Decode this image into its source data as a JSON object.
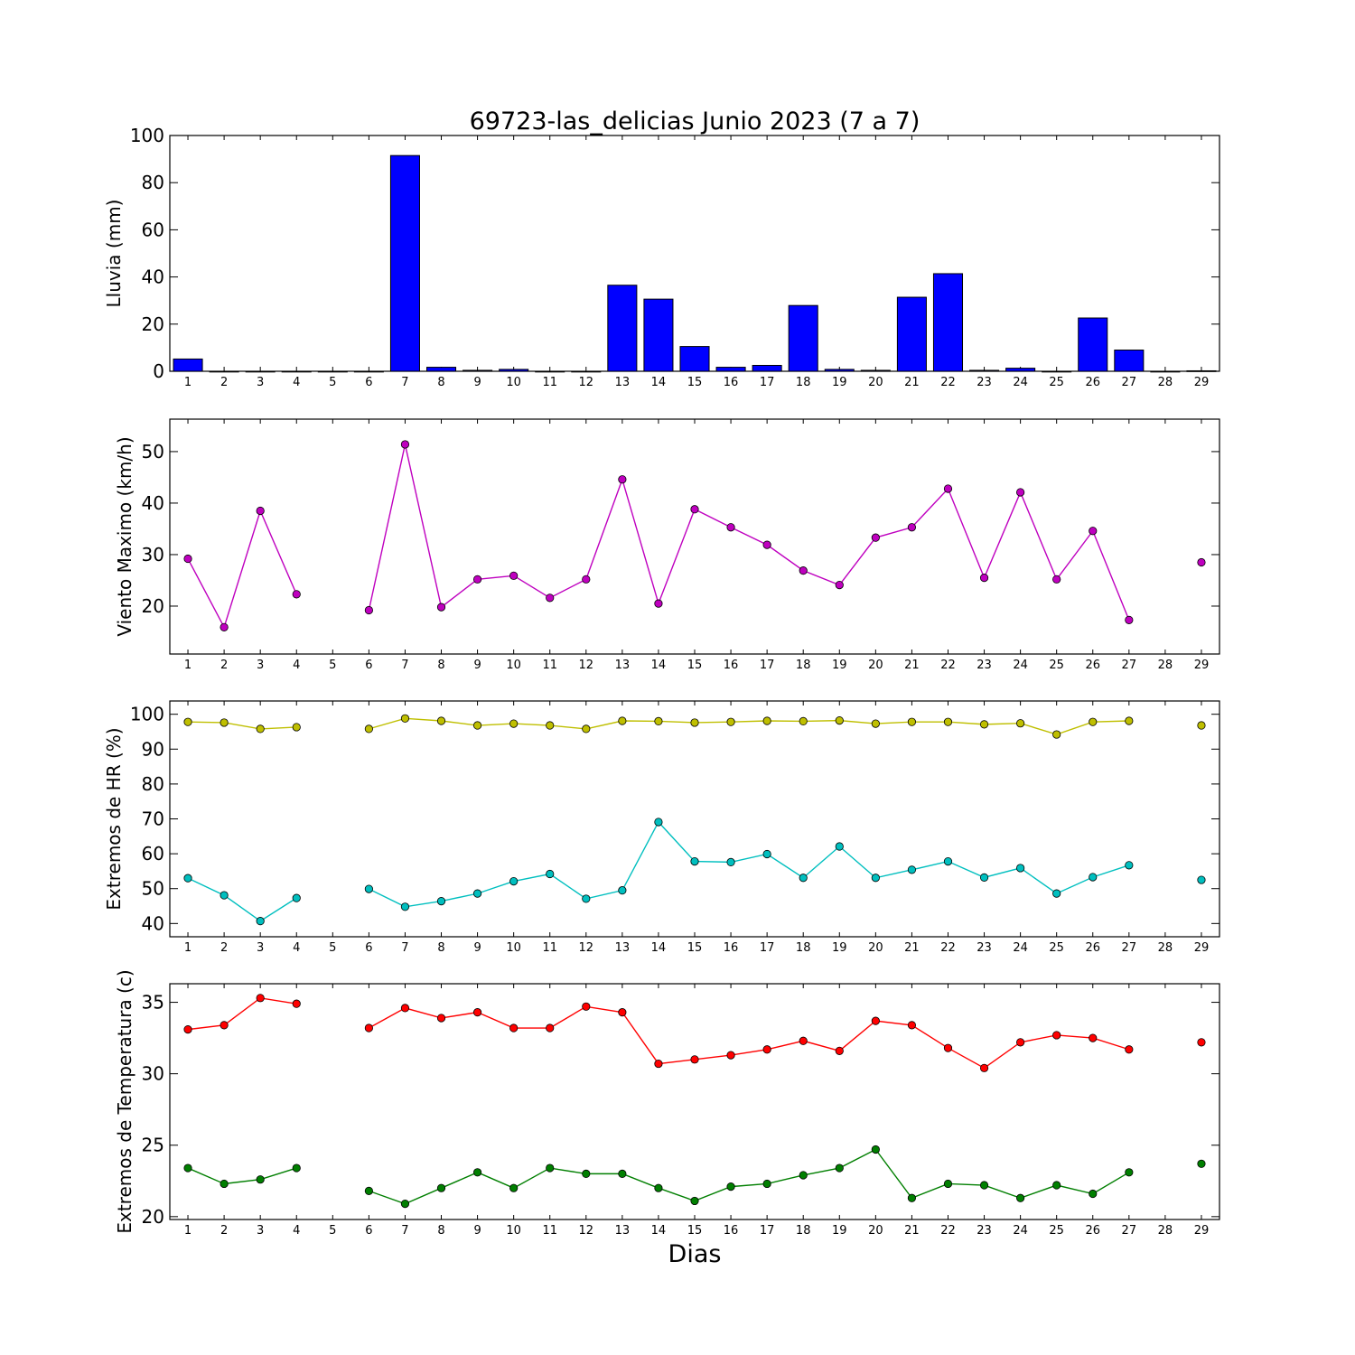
{
  "chart_data": [
    {
      "type": "bar",
      "title": "69723-las_delicias Junio 2023  (7 a 7)",
      "xlabel": "",
      "ylabel": "Lluvia (mm)",
      "ylim": [
        0,
        100
      ],
      "yticks": [
        0,
        20,
        40,
        60,
        80,
        100
      ],
      "categories": [
        "1",
        "2",
        "3",
        "4",
        "5",
        "6",
        "7",
        "8",
        "9",
        "10",
        "11",
        "12",
        "13",
        "14",
        "15",
        "16",
        "17",
        "18",
        "19",
        "20",
        "21",
        "22",
        "23",
        "24",
        "25",
        "26",
        "27",
        "28",
        "29"
      ],
      "color": "#0000ff",
      "values": [
        5.2,
        0,
        0,
        0,
        0,
        0,
        91.5,
        1.7,
        0.4,
        0.8,
        0,
        0,
        36.5,
        30.6,
        10.5,
        1.7,
        2.5,
        27.9,
        0.8,
        0.4,
        31.4,
        41.4,
        0.4,
        1.3,
        0,
        22.6,
        9.0,
        0,
        0.2
      ]
    },
    {
      "type": "line",
      "ylabel": "Viento Maximo (km/h)",
      "xlabel": "",
      "ylim": [
        10.7,
        56.3
      ],
      "yticks": [
        20,
        30,
        40,
        50
      ],
      "x": [
        1,
        2,
        3,
        4,
        5,
        6,
        7,
        8,
        9,
        10,
        11,
        12,
        13,
        14,
        15,
        16,
        17,
        18,
        19,
        20,
        21,
        22,
        23,
        24,
        25,
        26,
        27,
        28,
        29
      ],
      "series": [
        {
          "color": "#bf00bf",
          "values": [
            29.2,
            15.9,
            38.5,
            22.3,
            null,
            19.2,
            51.4,
            19.8,
            25.2,
            25.9,
            21.6,
            25.2,
            44.6,
            20.5,
            38.8,
            35.3,
            31.9,
            26.9,
            24.1,
            33.3,
            35.3,
            42.8,
            25.5,
            42.1,
            25.2,
            34.6,
            17.3,
            null,
            28.5
          ]
        }
      ]
    },
    {
      "type": "line",
      "ylabel": "Extremos de HR (%)",
      "xlabel": "",
      "ylim": [
        36.2,
        103.8
      ],
      "yticks": [
        40,
        50,
        60,
        70,
        80,
        90,
        100
      ],
      "x": [
        1,
        2,
        3,
        4,
        5,
        6,
        7,
        8,
        9,
        10,
        11,
        12,
        13,
        14,
        15,
        16,
        17,
        18,
        19,
        20,
        21,
        22,
        23,
        24,
        25,
        26,
        27,
        28,
        29
      ],
      "series": [
        {
          "color": "#bfbf00",
          "values": [
            97.8,
            97.6,
            95.8,
            96.3,
            null,
            95.8,
            98.8,
            98.1,
            96.8,
            97.3,
            96.8,
            95.8,
            98.1,
            98.0,
            97.6,
            97.8,
            98.1,
            98.0,
            98.2,
            97.3,
            97.8,
            97.8,
            97.1,
            97.4,
            94.2,
            97.8,
            98.1,
            null,
            96.8
          ]
        },
        {
          "color": "#00bfbf",
          "values": [
            53.0,
            48.1,
            40.7,
            47.3,
            null,
            49.9,
            44.8,
            46.4,
            48.6,
            52.1,
            54.2,
            47.1,
            49.5,
            69.1,
            57.8,
            57.6,
            59.9,
            53.1,
            62.1,
            53.1,
            55.4,
            57.8,
            53.2,
            55.9,
            48.6,
            53.3,
            56.7,
            null,
            52.5
          ]
        }
      ]
    },
    {
      "type": "line",
      "ylabel": "Extremos de Temperatura (c)",
      "xlabel": "Dias",
      "ylim": [
        19.8,
        36.3
      ],
      "yticks": [
        20,
        25,
        30,
        35
      ],
      "x": [
        1,
        2,
        3,
        4,
        5,
        6,
        7,
        8,
        9,
        10,
        11,
        12,
        13,
        14,
        15,
        16,
        17,
        18,
        19,
        20,
        21,
        22,
        23,
        24,
        25,
        26,
        27,
        28,
        29
      ],
      "series": [
        {
          "color": "#ff0000",
          "values": [
            33.1,
            33.4,
            35.3,
            34.9,
            null,
            33.2,
            34.6,
            33.9,
            34.3,
            33.2,
            33.2,
            34.7,
            34.3,
            30.7,
            31.0,
            31.3,
            31.7,
            32.3,
            31.6,
            33.7,
            33.4,
            31.8,
            30.4,
            32.2,
            32.7,
            32.5,
            31.7,
            null,
            32.2
          ]
        },
        {
          "color": "#007f00",
          "values": [
            23.4,
            22.3,
            22.6,
            23.4,
            null,
            21.8,
            20.9,
            22.0,
            23.1,
            22.0,
            23.4,
            23.0,
            23.0,
            22.0,
            21.1,
            22.1,
            22.3,
            22.9,
            23.4,
            24.7,
            21.3,
            22.3,
            22.2,
            21.3,
            22.2,
            21.6,
            23.1,
            null,
            23.7
          ]
        }
      ]
    }
  ]
}
